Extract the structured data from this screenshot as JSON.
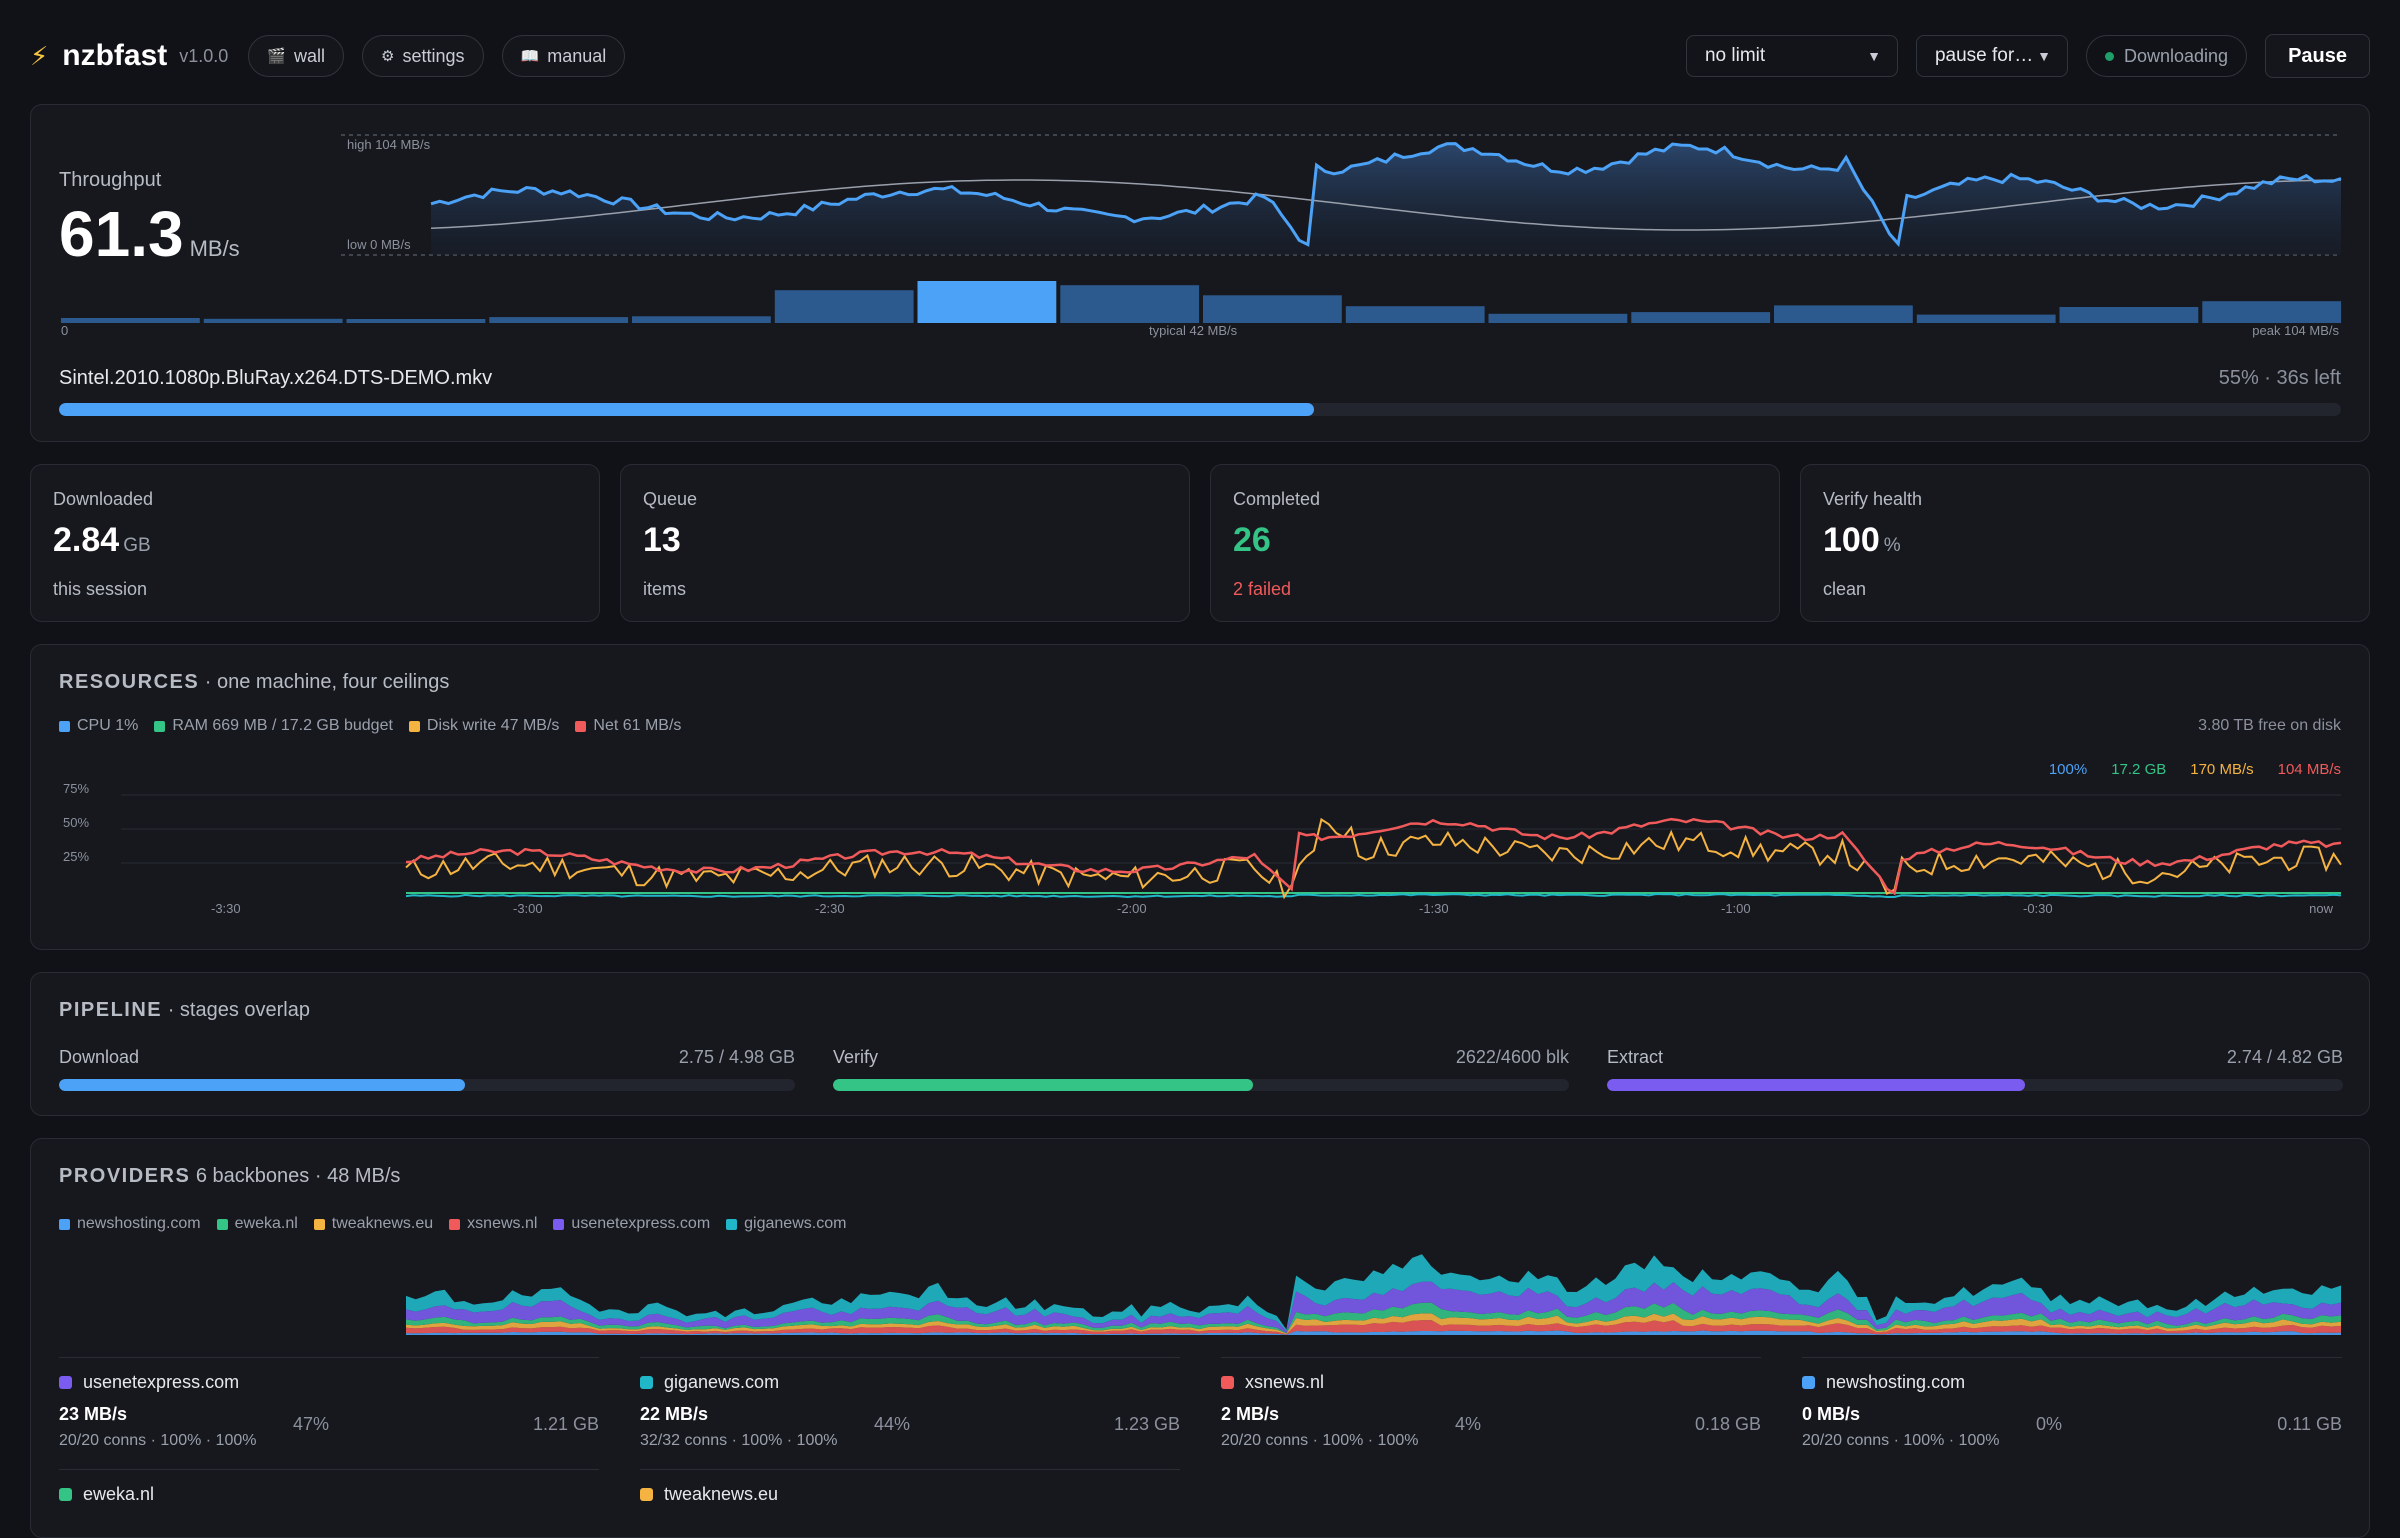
{
  "app": {
    "name": "nzbfast",
    "version": "v1.0.0"
  },
  "nav": [
    {
      "label": "wall",
      "icon": "clapper-icon"
    },
    {
      "label": "settings",
      "icon": "gear-icon"
    },
    {
      "label": "manual",
      "icon": "book-icon"
    }
  ],
  "controls": {
    "speed_limit": "no limit",
    "pause_for": "pause for…",
    "status": "Downloading",
    "pause_label": "Pause"
  },
  "throughput": {
    "label": "Throughput",
    "value": "61.3",
    "unit": "MB/s",
    "high_label": "high 104 MB/s",
    "low_label": "low 0 MB/s",
    "hist_min": "0",
    "hist_typical": "typical 42 MB/s",
    "hist_peak": "peak 104 MB/s",
    "histogram": [
      0.12,
      0.1,
      0.08,
      0.14,
      0.16,
      0.78,
      1.0,
      0.9,
      0.66,
      0.4,
      0.22,
      0.26,
      0.42,
      0.2,
      0.38,
      0.52
    ],
    "histogram_highlight": 6
  },
  "current_file": {
    "name": "Sintel.2010.1080p.BluRay.x264.DTS-DEMO.mkv",
    "progress_text": "55% · 36s left",
    "progress": 0.55
  },
  "stats": [
    {
      "label": "Downloaded",
      "value": "2.84",
      "unit": "GB",
      "sub": "this session",
      "value_color": "#ffffff",
      "sub_color": "#b7bbc4"
    },
    {
      "label": "Queue",
      "value": "13",
      "unit": "",
      "sub": "items",
      "value_color": "#ffffff",
      "sub_color": "#b7bbc4"
    },
    {
      "label": "Completed",
      "value": "26",
      "unit": "",
      "sub": "2 failed",
      "value_color": "#33c486",
      "sub_color": "#f05a5a"
    },
    {
      "label": "Verify health",
      "value": "100",
      "unit": "%",
      "sub": "clean",
      "value_color": "#ffffff",
      "sub_color": "#b7bbc4"
    }
  ],
  "resources": {
    "title": "RESOURCES",
    "subtitle": "· one machine, four ceilings",
    "disk_free": "3.80 TB free on disk",
    "legend": [
      {
        "label": "CPU 1%",
        "color": "#4ca2f7"
      },
      {
        "label": "RAM 669 MB / 17.2 GB budget",
        "color": "#33c486"
      },
      {
        "label": "Disk write 47 MB/s",
        "color": "#f5b342"
      },
      {
        "label": "Net 61 MB/s",
        "color": "#f05a5a"
      }
    ],
    "max_labels": [
      {
        "label": "100%",
        "color": "#4ca2f7"
      },
      {
        "label": "17.2 GB",
        "color": "#33c486"
      },
      {
        "label": "170 MB/s",
        "color": "#f5b342"
      },
      {
        "label": "104 MB/s",
        "color": "#f05a5a"
      }
    ],
    "y_ticks": [
      "75%",
      "50%",
      "25%"
    ],
    "x_ticks": [
      "-3:30",
      "-3:00",
      "-2:30",
      "-2:00",
      "-1:30",
      "-1:00",
      "-0:30",
      "now"
    ]
  },
  "pipeline": {
    "title": "PIPELINE",
    "subtitle": "· stages overlap",
    "stages": [
      {
        "label": "Download",
        "value": "2.75 / 4.98 GB",
        "progress": 0.552,
        "color": "#4ca2f7"
      },
      {
        "label": "Verify",
        "value": "2622/4600 blk",
        "progress": 0.57,
        "color": "#33c486"
      },
      {
        "label": "Extract",
        "value": "2.74 / 4.82 GB",
        "progress": 0.568,
        "color": "#7b5cf0"
      }
    ]
  },
  "providers": {
    "title": "PROVIDERS",
    "subtitle": "6 backbones · 48 MB/s",
    "legend": [
      {
        "label": "newshosting.com",
        "color": "#4ca2f7"
      },
      {
        "label": "eweka.nl",
        "color": "#33c486"
      },
      {
        "label": "tweaknews.eu",
        "color": "#f5b342"
      },
      {
        "label": "xsnews.nl",
        "color": "#f05a5a"
      },
      {
        "label": "usenetexpress.com",
        "color": "#7b5cf0"
      },
      {
        "label": "giganews.com",
        "color": "#20b8c9"
      }
    ],
    "rows": [
      {
        "name": "usenetexpress.com",
        "color": "#7b5cf0",
        "speed": "23 MB/s",
        "conns": "20/20 conns · 100% · 100%",
        "pct": "47%",
        "gb": "1.21 GB"
      },
      {
        "name": "giganews.com",
        "color": "#20b8c9",
        "speed": "22 MB/s",
        "conns": "32/32 conns · 100% · 100%",
        "pct": "44%",
        "gb": "1.23 GB"
      },
      {
        "name": "xsnews.nl",
        "color": "#f05a5a",
        "speed": "2 MB/s",
        "conns": "20/20 conns · 100% · 100%",
        "pct": "4%",
        "gb": "0.18 GB"
      },
      {
        "name": "newshosting.com",
        "color": "#4ca2f7",
        "speed": "0 MB/s",
        "conns": "20/20 conns · 100% · 100%",
        "pct": "0%",
        "gb": "0.11 GB"
      },
      {
        "name": "eweka.nl",
        "color": "#33c486",
        "speed": "",
        "conns": "",
        "pct": "",
        "gb": ""
      },
      {
        "name": "tweaknews.eu",
        "color": "#f5b342",
        "speed": "",
        "conns": "",
        "pct": "",
        "gb": ""
      }
    ]
  }
}
